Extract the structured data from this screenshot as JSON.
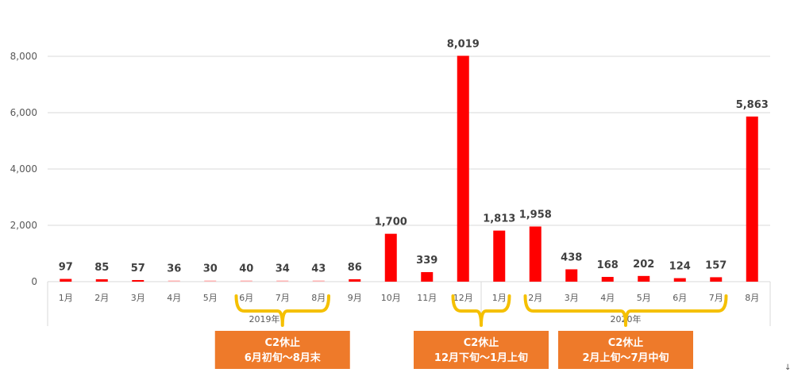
{
  "chart_data": {
    "type": "bar",
    "categories": [
      "1月",
      "2月",
      "3月",
      "4月",
      "5月",
      "6月",
      "7月",
      "8月",
      "9月",
      "10月",
      "11月",
      "12月",
      "1月",
      "2月",
      "3月",
      "4月",
      "5月",
      "6月",
      "7月",
      "8月"
    ],
    "year_groups": [
      {
        "label": "2019年",
        "start": 0,
        "end": 11
      },
      {
        "label": "2020年",
        "start": 12,
        "end": 19
      }
    ],
    "values": [
      97,
      85,
      57,
      36,
      30,
      40,
      34,
      43,
      86,
      1700,
      339,
      8019,
      1813,
      1958,
      438,
      168,
      202,
      124,
      157,
      5863
    ],
    "value_labels": [
      "97",
      "85",
      "57",
      "36",
      "30",
      "40",
      "34",
      "43",
      "86",
      "1,700",
      "339",
      "8,019",
      "1,813",
      "1,958",
      "438",
      "168",
      "202",
      "124",
      "157",
      "5,863"
    ],
    "ylim": [
      0,
      8000
    ],
    "yticks": [
      0,
      2000,
      4000,
      6000,
      8000
    ],
    "ytick_labels": [
      "0",
      "2,000",
      "4,000",
      "6,000",
      "8,000"
    ],
    "grid": true,
    "colors": {
      "bar": "#ff0000",
      "bar_light": "#ffb3b3",
      "bracket": "#f5c000",
      "callout": "#ee7a2a",
      "gridline": "#d9d9d9"
    },
    "annotations": [
      {
        "line1": "C2休止",
        "line2": "6月初旬～8月末",
        "from": 5,
        "to": 7
      },
      {
        "line1": "C2休止",
        "line2": "12月下旬～1月上旬",
        "from": 11,
        "to": 12
      },
      {
        "line1": "C2休止",
        "line2": "2月上旬～7月中旬",
        "from": 13,
        "to": 18
      }
    ]
  },
  "footer_mark": "↓"
}
